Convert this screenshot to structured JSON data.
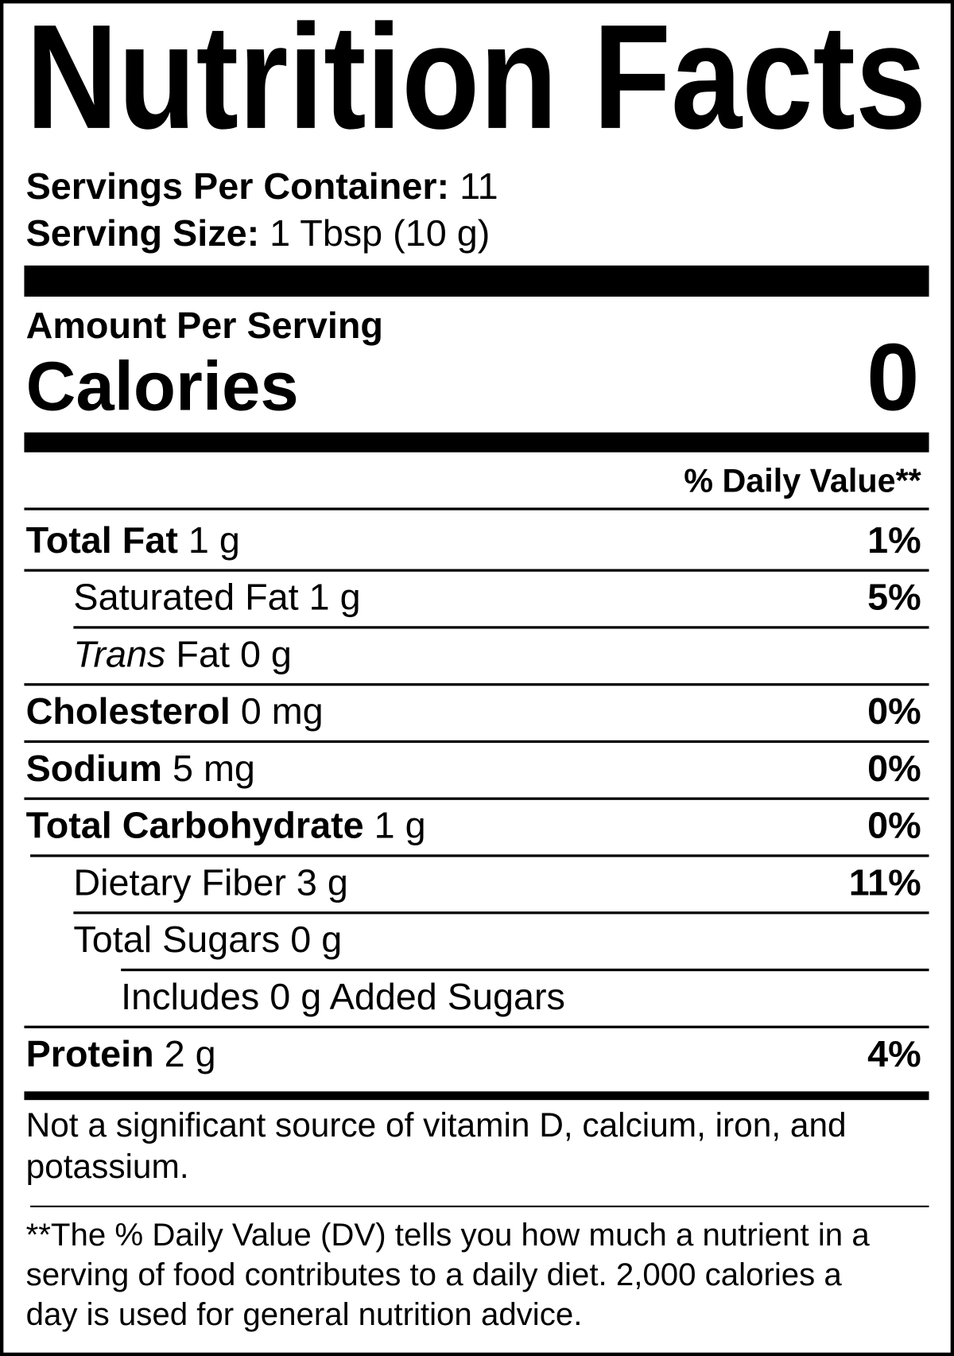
{
  "title": "Nutrition Facts",
  "servings": {
    "label": "Servings Per Container:",
    "value": "11"
  },
  "serving_size": {
    "label": "Serving Size:",
    "value": "1 Tbsp (10 g)"
  },
  "amount_per_serving": "Amount Per Serving",
  "calories": {
    "label": "Calories",
    "value": "0"
  },
  "daily_value_header": "% Daily Value**",
  "rows": [
    {
      "name": "Total Fat",
      "bold": true,
      "amount": "1 g",
      "dv": "1%",
      "indent": 0
    },
    {
      "name": "Saturated Fat",
      "bold": false,
      "amount": "1 g",
      "dv": "5%",
      "indent": 1
    },
    {
      "name": "Trans",
      "italic": true,
      "suffix": "Fat",
      "bold": false,
      "amount": "0 g",
      "dv": "",
      "indent": 1
    },
    {
      "name": "Cholesterol",
      "bold": true,
      "amount": "0 mg",
      "dv": "0%",
      "indent": 0
    },
    {
      "name": "Sodium",
      "bold": true,
      "amount": "5 mg",
      "dv": "0%",
      "indent": 0
    },
    {
      "name": "Total Carbohydrate",
      "bold": true,
      "amount": "1 g",
      "dv": "0%",
      "indent": 0
    },
    {
      "name": "Dietary Fiber",
      "bold": false,
      "amount": "3 g",
      "dv": "11%",
      "indent": 1
    },
    {
      "name": "Total Sugars",
      "bold": false,
      "amount": "0 g",
      "dv": "",
      "indent": 1
    },
    {
      "name": "Includes 0 g Added Sugars",
      "bold": false,
      "amount": "",
      "dv": "",
      "indent": 2
    },
    {
      "name": "Protein",
      "bold": true,
      "amount": "2 g",
      "dv": "4%",
      "indent": 0
    }
  ],
  "footnote_vitamins": [
    "Not a significant source of vitamin D, calcium, iron, and",
    "potassium."
  ],
  "footnote_dv": [
    "**The % Daily Value (DV) tells you how much a nutrient in a",
    "serving of food contributes to a daily diet. 2,000 calories a",
    "day is used for general nutrition advice."
  ]
}
